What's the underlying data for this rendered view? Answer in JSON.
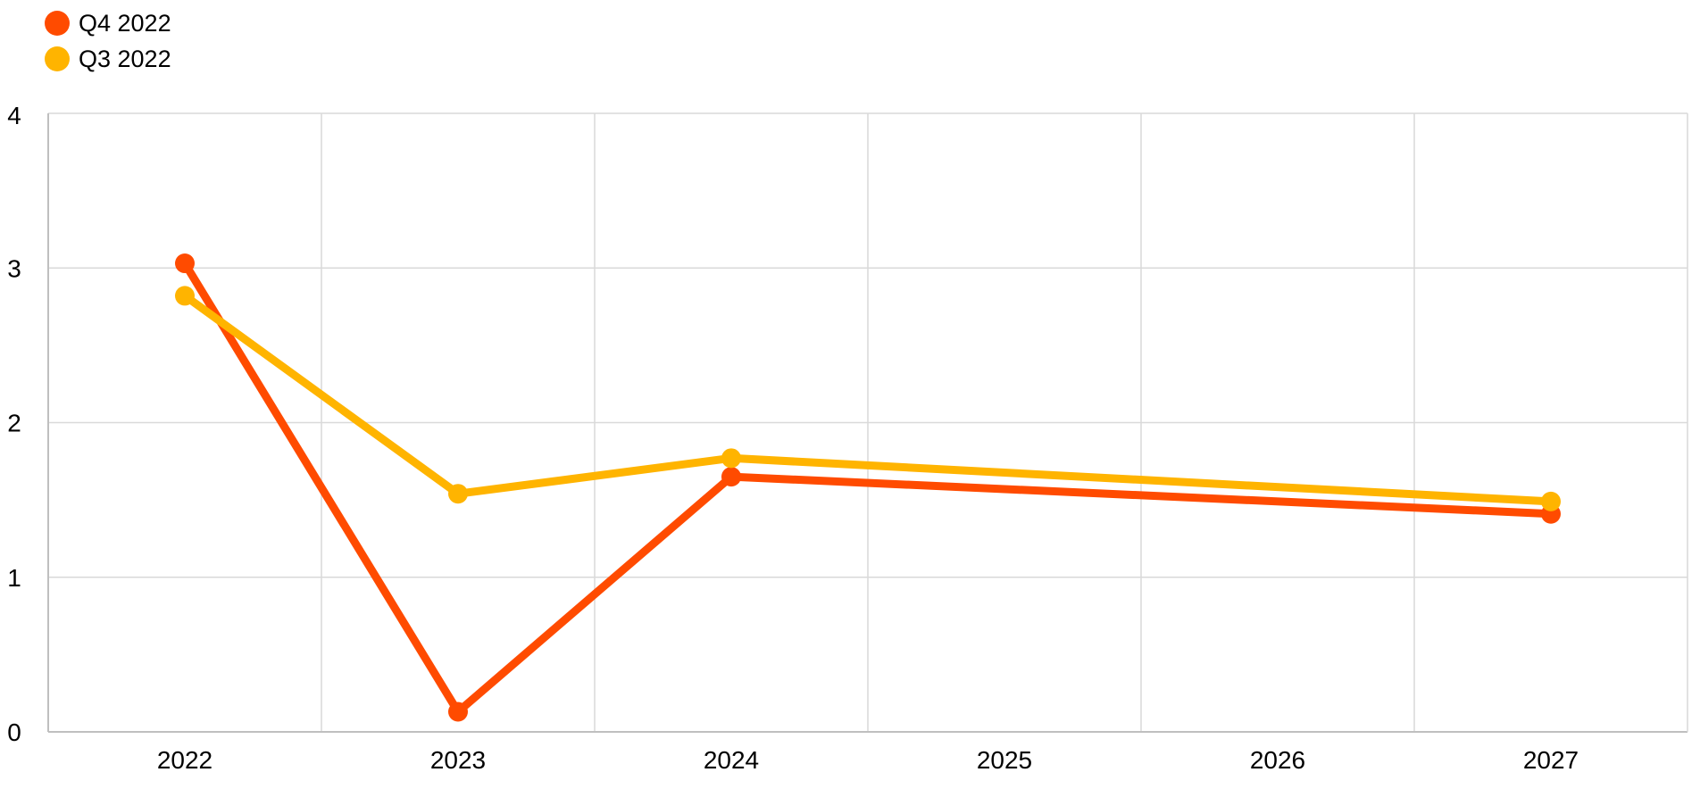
{
  "chart_data": {
    "type": "line",
    "categories": [
      "2022",
      "2023",
      "2024",
      "2025",
      "2026",
      "2027"
    ],
    "x": [
      2022,
      2023,
      2024,
      2025,
      2026,
      2027
    ],
    "ylim": [
      0,
      4
    ],
    "yticks": [
      "0",
      "1",
      "2",
      "3",
      "4"
    ],
    "xlim": [
      2021.5,
      2027.5
    ],
    "grid": true,
    "legend_position": "top-left",
    "series": [
      {
        "name": "Q4 2022",
        "color": "#ff4b00",
        "points": [
          [
            2022,
            3.03
          ],
          [
            2023,
            0.13
          ],
          [
            2024,
            1.65
          ],
          [
            2027,
            1.41
          ]
        ]
      },
      {
        "name": "Q3 2022",
        "color": "#ffb400",
        "points": [
          [
            2022,
            2.82
          ],
          [
            2023,
            1.54
          ],
          [
            2024,
            1.77
          ],
          [
            2027,
            1.49
          ]
        ]
      }
    ]
  }
}
